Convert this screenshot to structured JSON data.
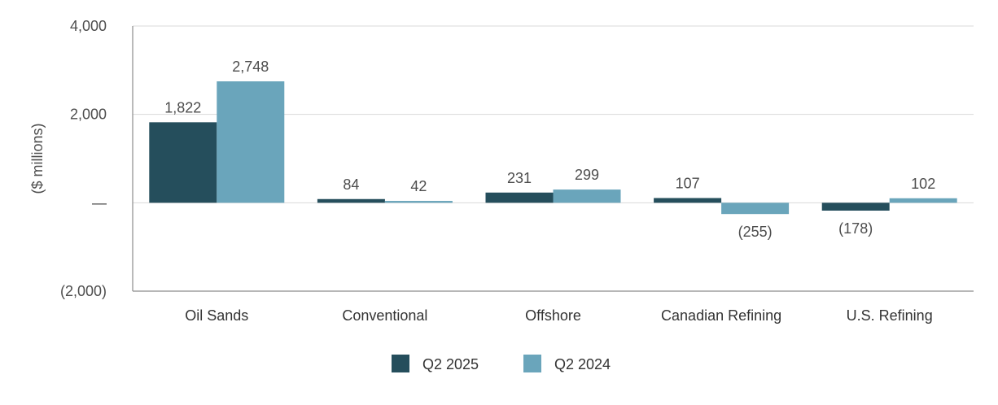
{
  "chart_data": {
    "type": "bar",
    "ylabel": "($ millions)",
    "ylim": [
      -2000,
      4000
    ],
    "yticks": [
      {
        "value": 4000,
        "label": "4,000"
      },
      {
        "value": 2000,
        "label": "2,000"
      },
      {
        "value": 0,
        "label": "—"
      },
      {
        "value": -2000,
        "label": "(2,000)"
      }
    ],
    "grid": true,
    "legend_position": "bottom",
    "categories": [
      "Oil Sands",
      "Conventional",
      "Offshore",
      "Canadian Refining",
      "U.S. Refining"
    ],
    "series": [
      {
        "name": "Q2 2025",
        "color": "#254e5c",
        "values": [
          1822,
          84,
          231,
          107,
          -178
        ],
        "labels": [
          "1,822",
          "84",
          "231",
          "107",
          "(178)"
        ]
      },
      {
        "name": "Q2 2024",
        "color": "#6aa5bb",
        "values": [
          2748,
          42,
          299,
          -255,
          102
        ],
        "labels": [
          "2,748",
          "42",
          "299",
          "(255)",
          "102"
        ]
      }
    ]
  }
}
